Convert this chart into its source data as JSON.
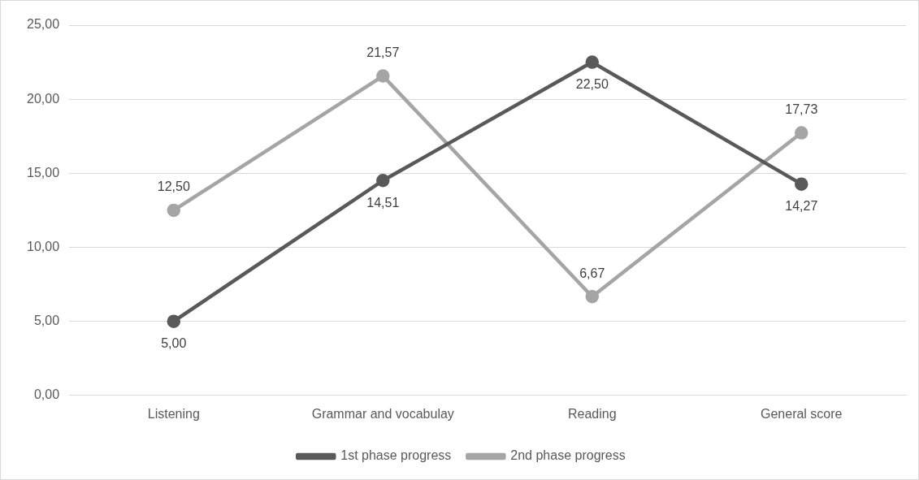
{
  "chart_data": {
    "type": "line",
    "categories": [
      "Listening",
      "Grammar and vocabulay",
      "Reading",
      "General score"
    ],
    "series": [
      {
        "name": "1st phase progress",
        "color": "#595959",
        "values": [
          5.0,
          14.51,
          22.5,
          14.27
        ],
        "value_labels": [
          "5,00",
          "14,51",
          "22,50",
          "14,27"
        ]
      },
      {
        "name": "2nd phase progress",
        "color": "#a5a5a5",
        "values": [
          12.5,
          21.57,
          6.67,
          17.73
        ],
        "value_labels": [
          "12,50",
          "21,57",
          "6,67",
          "17,73"
        ]
      }
    ],
    "ylim": [
      0,
      25
    ],
    "yticks": [
      {
        "value": 0,
        "label": "0,00"
      },
      {
        "value": 5,
        "label": "5,00"
      },
      {
        "value": 10,
        "label": "10,00"
      },
      {
        "value": 15,
        "label": "15,00"
      },
      {
        "value": 20,
        "label": "20,00"
      },
      {
        "value": 25,
        "label": "25,00"
      }
    ],
    "grid": "y",
    "legend": "bottom",
    "marker": "circle",
    "line_style": "solid"
  }
}
